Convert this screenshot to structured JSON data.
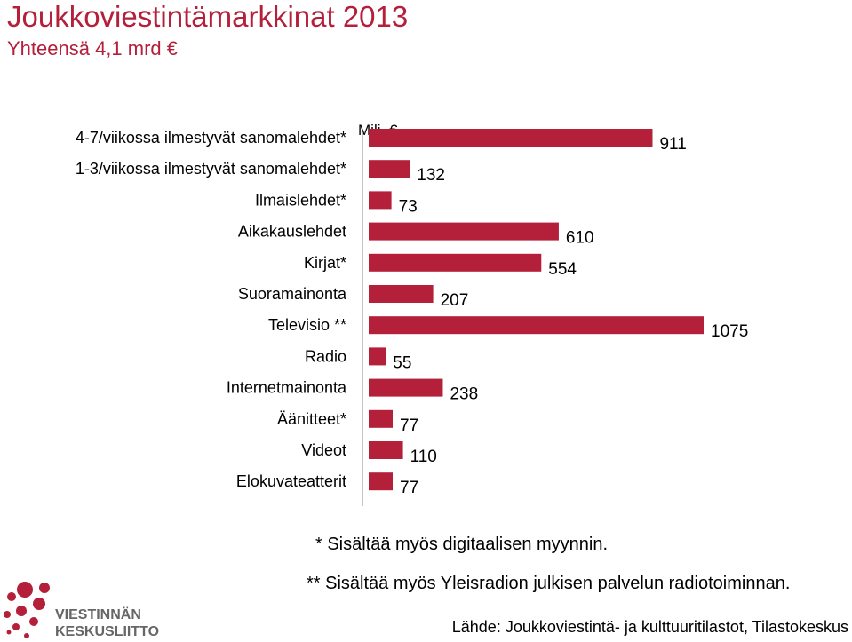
{
  "header": {
    "title": "Joukkoviestintämarkkinat 2013",
    "subtitle": "Yhteensä 4,1 mrd €"
  },
  "chart_data": {
    "type": "bar",
    "orientation": "horizontal",
    "unit_label": "Milj. €",
    "categories": [
      "4-7/viikossa ilmestyvät sanomalehdet*",
      "1-3/viikossa ilmestyvät sanomalehdet*",
      "Ilmaislehdet*",
      "Aikakauslehdet",
      "Kirjat*",
      "Suoramainonta",
      "Televisio **",
      "Radio",
      "Internetmainonta",
      "Äänitteet*",
      "Videot",
      "Elokuvateatterit"
    ],
    "values": [
      911,
      132,
      73,
      610,
      554,
      207,
      1075,
      55,
      238,
      77,
      110,
      77
    ],
    "xlim": [
      0,
      1075
    ],
    "grid": false,
    "legend": "none",
    "bar_color": "#b41f3a"
  },
  "footnotes": [
    "* Sisältää myös digitaalisen myynnin.",
    "** Sisältää myös Yleisradion julkisen palvelun radiotoiminnan."
  ],
  "source": "Lähde: Joukkoviestintä- ja kulttuuritilastot, Tilastokeskus",
  "logo": {
    "line1": "VIESTINNÄN",
    "line2": "KESKUSLIITTO"
  },
  "colors": {
    "accent": "#b41f3a",
    "axis": "#888888"
  }
}
